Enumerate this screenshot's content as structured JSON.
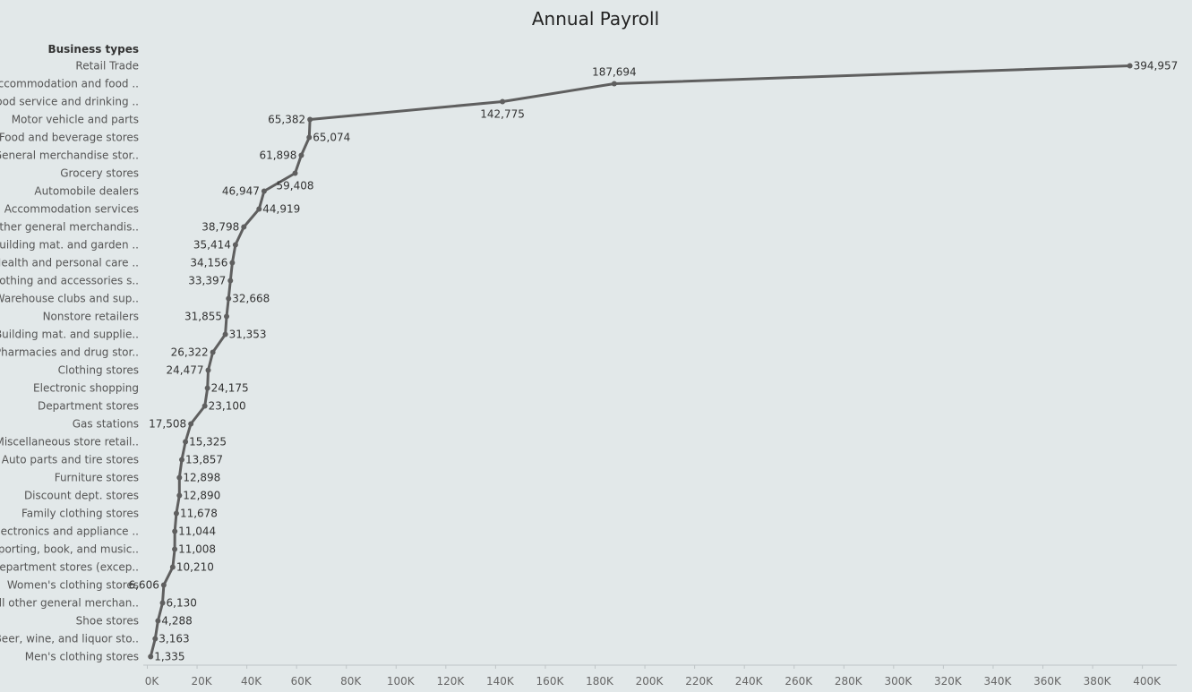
{
  "chart_data": {
    "type": "line",
    "title": "Annual Payroll",
    "row_header": "Business types",
    "categories": [
      "Retail Trade",
      "Accommodation and food ..",
      "Food service and drinking ..",
      "Motor vehicle and parts",
      "Food and beverage stores",
      "General merchandise stor..",
      "Grocery stores",
      "Automobile dealers",
      "Accommodation services",
      "Other general merchandis..",
      "Building mat. and garden ..",
      "Health and personal care ..",
      "Clothing and accessories s..",
      "Warehouse clubs and sup..",
      "Nonstore retailers",
      "Building mat. and supplie..",
      "Pharmacies and drug stor..",
      "Clothing stores",
      "Electronic shopping",
      "Department stores",
      "Gas stations",
      "Miscellaneous store retail..",
      "Auto parts and tire stores",
      "Furniture stores",
      "Discount dept. stores",
      "Family clothing stores",
      "Electronics and appliance ..",
      "Sporting, book, and  music..",
      "Department stores (excep..",
      "Women's clothing stores",
      "All other general merchan..",
      "Shoe stores",
      "Beer, wine, and liquor sto..",
      "Men's clothing stores"
    ],
    "values": [
      394957,
      187694,
      142775,
      65382,
      65074,
      61898,
      59408,
      46947,
      44919,
      38798,
      35414,
      34156,
      33397,
      32668,
      31855,
      31353,
      26322,
      24477,
      24175,
      23100,
      17508,
      15325,
      13857,
      12898,
      12890,
      11678,
      11044,
      11008,
      10210,
      6606,
      6130,
      4288,
      3163,
      1335
    ],
    "data_labels": [
      "394,957",
      "187,694",
      "142,775",
      "65,382",
      "65,074",
      "61,898",
      "59,408",
      "46,947",
      "44,919",
      "38,798",
      "35,414",
      "34,156",
      "33,397",
      "32,668",
      "31,855",
      "31,353",
      "26,322",
      "24,477",
      "24,175",
      "23,100",
      "17,508",
      "15,325",
      "13,857",
      "12,898",
      "12,890",
      "11,678",
      "11,044",
      "11,008",
      "10,210",
      "6,606",
      "6,130",
      "4,288",
      "3,163",
      "1,335"
    ],
    "label_side": [
      "right",
      "above",
      "below",
      "left",
      "right",
      "left",
      "below",
      "left",
      "right",
      "left",
      "left",
      "left",
      "left",
      "right",
      "left",
      "right",
      "left",
      "left",
      "right",
      "right",
      "left",
      "right",
      "right",
      "right",
      "right",
      "right",
      "right",
      "right",
      "right",
      "left",
      "right",
      "right",
      "right",
      "right"
    ],
    "x_ticks": [
      "0K",
      "20K",
      "40K",
      "60K",
      "80K",
      "100K",
      "120K",
      "140K",
      "160K",
      "180K",
      "200K",
      "220K",
      "240K",
      "260K",
      "280K",
      "300K",
      "320K",
      "340K",
      "360K",
      "380K",
      "400K"
    ],
    "xlim": [
      0,
      400000
    ],
    "grid": false,
    "colors": {
      "line": "#5f5f5f",
      "background": "#e2e8e9"
    }
  }
}
